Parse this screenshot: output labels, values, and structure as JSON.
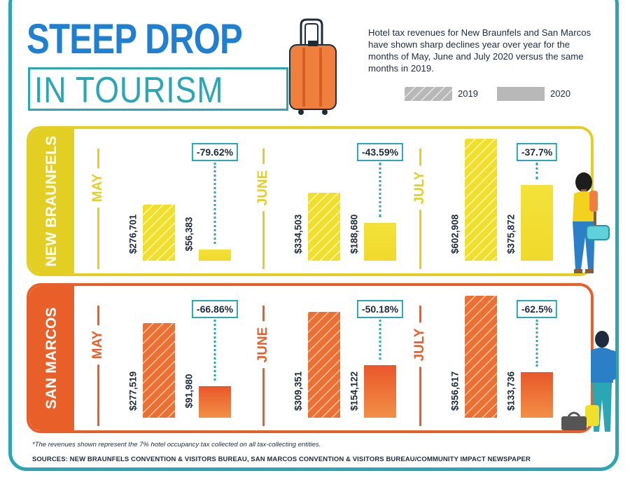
{
  "title_line1": "STEEP DROP",
  "title_line2": "IN TOURISM",
  "description": "Hotel tax revenues for New Braunfels and San Marcos have shown sharp declines year over year for the months of May, June and July 2020 versus the same months in 2019.",
  "legend": [
    {
      "label": "2019",
      "pattern": "hatched"
    },
    {
      "label": "2020",
      "pattern": "solid"
    }
  ],
  "colors": {
    "accent_blue": "#1f7fd1",
    "accent_teal": "#2aa6b5",
    "new_braunfels": "#e3cf24",
    "new_braunfels_bar": "#f1df2d",
    "san_marcos": "#e85f2a",
    "san_marcos_bar": "#ef7f3c",
    "legend_gray": "#b8b8b8"
  },
  "chart_data": [
    {
      "type": "bar",
      "title": "NEW BRAUNFELS",
      "categories": [
        "MAY",
        "JUNE",
        "JULY"
      ],
      "series": [
        {
          "name": "2019",
          "values": [
            276701,
            334503,
            602908
          ]
        },
        {
          "name": "2020",
          "values": [
            56383,
            188680,
            375872
          ]
        }
      ],
      "value_labels": {
        "2019": [
          "$276,701",
          "$334,503",
          "$602,908"
        ],
        "2020": [
          "$56,383",
          "$188,680",
          "$375,872"
        ]
      },
      "percent_change": [
        "-79.62%",
        "-43.59%",
        "-37.7%"
      ]
    },
    {
      "type": "bar",
      "title": "SAN MARCOS",
      "categories": [
        "MAY",
        "JUNE",
        "JULY"
      ],
      "series": [
        {
          "name": "2019",
          "values": [
            277519,
            309351,
            356617
          ]
        },
        {
          "name": "2020",
          "values": [
            91980,
            154122,
            133736
          ]
        }
      ],
      "value_labels": {
        "2019": [
          "$277,519",
          "$309,351",
          "$356,617"
        ],
        "2020": [
          "$91,980",
          "$154,122",
          "$133,736"
        ]
      },
      "percent_change": [
        "-66.86%",
        "-50.18%",
        "-62.5%"
      ]
    }
  ],
  "footnote": "*The revenues shown represent the 7% hotel occupancy tax collected on all tax-collecting entities.",
  "sources": "SOURCES: NEW BRAUNFELS CONVENTION & VISITORS BUREAU, SAN MARCOS CONVENTION & VISITORS BUREAU/COMMUNITY IMPACT NEWSPAPER"
}
